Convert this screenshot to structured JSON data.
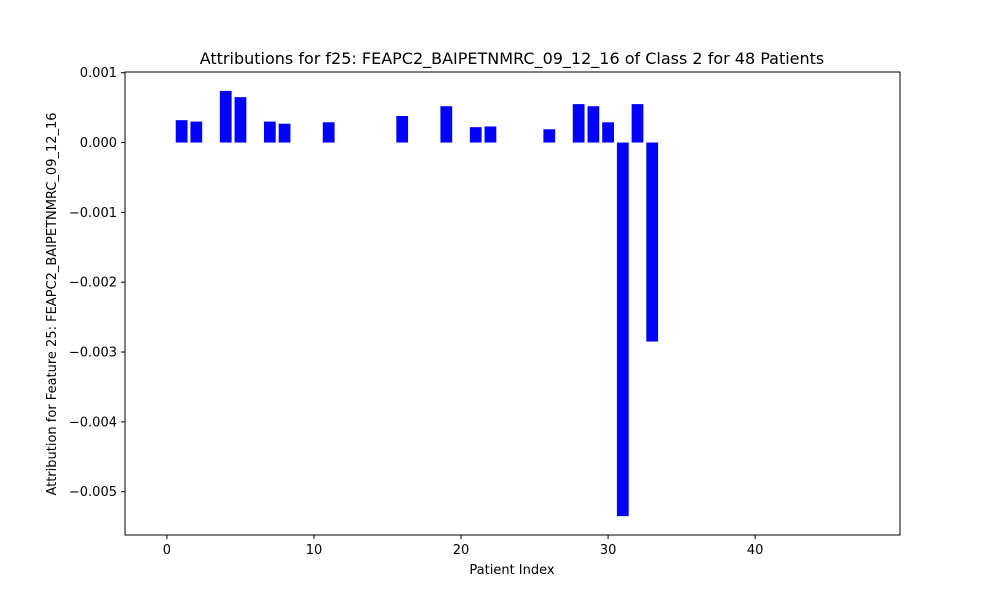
{
  "chart_data": {
    "type": "bar",
    "title": "Attributions for f25: FEAPC2_BAIPETNMRC_09_12_16 of Class 2 for 48 Patients",
    "xlabel": "Patient Index",
    "ylabel": "Attribution for Feature 25: FEAPC2_BAIPETNMRC_09_12_16",
    "xlim": [
      -2.85,
      49.85
    ],
    "ylim": [
      -0.00562,
      0.00101
    ],
    "xticks": [
      0,
      10,
      20,
      30,
      40
    ],
    "xtick_labels": [
      "0",
      "10",
      "20",
      "30",
      "40"
    ],
    "yticks": [
      0.001,
      0.0,
      -0.001,
      -0.002,
      -0.003,
      -0.004,
      -0.005
    ],
    "ytick_labels": [
      "0.001",
      "0.000",
      "−0.001",
      "−0.002",
      "−0.003",
      "−0.004",
      "−0.005"
    ],
    "bar_color": "#0000ff",
    "grid": false,
    "legend": "none",
    "x": [
      0,
      1,
      2,
      3,
      4,
      5,
      6,
      7,
      8,
      9,
      10,
      11,
      12,
      13,
      14,
      15,
      16,
      17,
      18,
      19,
      20,
      21,
      22,
      23,
      24,
      25,
      26,
      27,
      28,
      29,
      30,
      31,
      32,
      33,
      34,
      35,
      36,
      37,
      38,
      39,
      40,
      41,
      42,
      43,
      44,
      45,
      46,
      47
    ],
    "values": [
      0,
      0.00032,
      0.0003,
      0,
      0.00074,
      0.00065,
      0,
      0.0003,
      0.00027,
      0,
      0,
      0.00029,
      0,
      0,
      0,
      0,
      0.00038,
      0,
      0,
      0.00052,
      0,
      0.00022,
      0.00023,
      0,
      0,
      0,
      0.00019,
      0,
      0.00055,
      0.00052,
      0.00029,
      -0.00535,
      0.00055,
      -0.00285,
      0,
      0,
      0,
      0,
      0,
      0,
      0,
      0,
      0,
      0,
      0,
      0,
      0,
      0
    ]
  }
}
